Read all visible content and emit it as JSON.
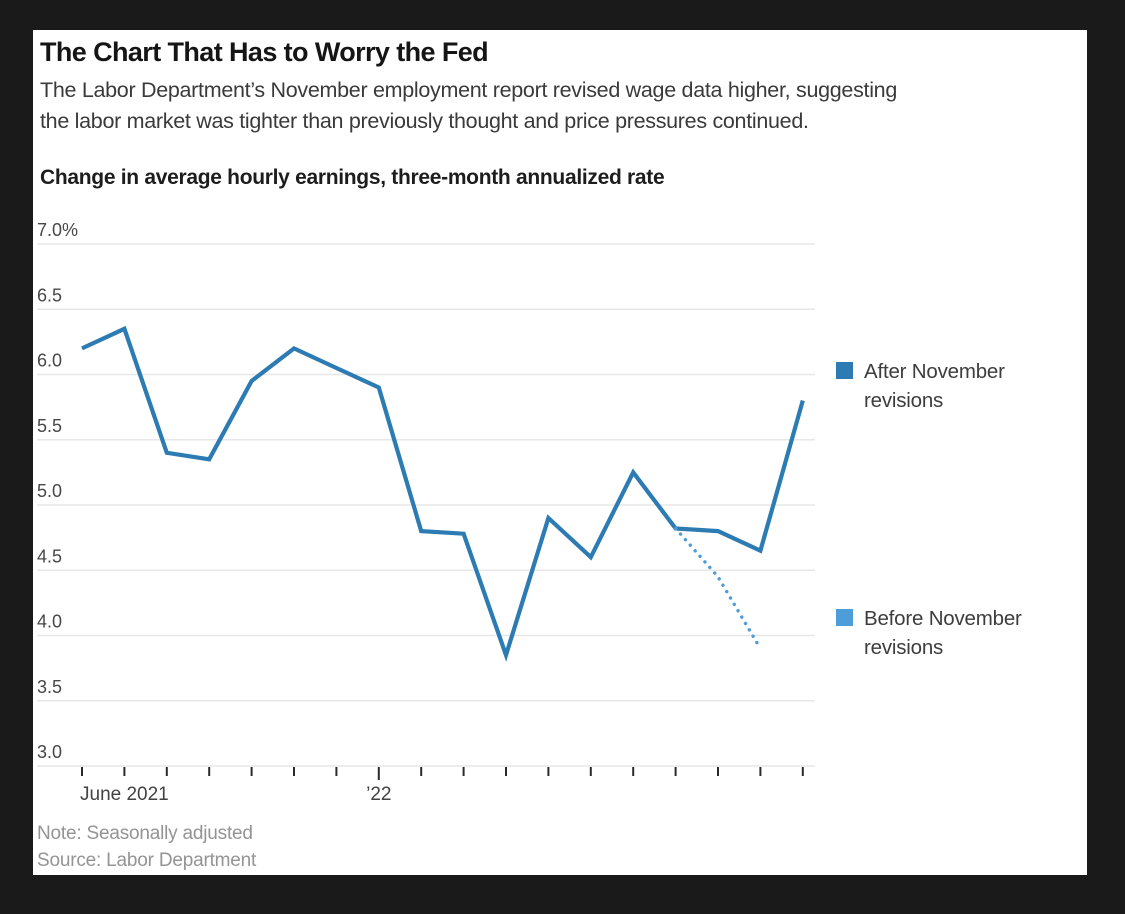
{
  "frame": {
    "background": "#1a1a1a",
    "panel_background": "#ffffff"
  },
  "header": {
    "title": "The Chart That Has to Worry the Fed",
    "subtitle_line1": "The Labor Department’s November employment report revised wage data higher, suggesting",
    "subtitle_line2": "the labor market was tighter than previously thought and price pressures continued."
  },
  "chart_label": "Change in average hourly earnings, three-month annualized rate",
  "legend": {
    "items": [
      {
        "label": "After November revisions",
        "color": "#2c7bb2"
      },
      {
        "label": "Before November revisions",
        "color": "#4d9dd9"
      }
    ]
  },
  "notes": {
    "note": "Note: Seasonally adjusted",
    "source": "Source: Labor Department"
  },
  "chart_data": {
    "type": "line",
    "title": "Change in average hourly earnings, three-month annualized rate",
    "unit": "%",
    "x": [
      "Jun 2021",
      "Jul 2021",
      "Aug 2021",
      "Sep 2021",
      "Oct 2021",
      "Nov 2021",
      "Dec 2021",
      "Jan 2022",
      "Feb 2022",
      "Mar 2022",
      "Apr 2022",
      "May 2022",
      "Jun 2022",
      "Jul 2022",
      "Aug 2022",
      "Sep 2022",
      "Oct 2022",
      "Nov 2022"
    ],
    "series": [
      {
        "name": "After November revisions",
        "style": "solid",
        "color": "#2c7bb2",
        "values": [
          6.2,
          6.35,
          5.4,
          5.35,
          5.95,
          6.2,
          6.05,
          5.9,
          4.8,
          4.78,
          3.85,
          4.9,
          4.6,
          5.25,
          4.82,
          4.8,
          4.65,
          5.8
        ]
      },
      {
        "name": "Before November revisions",
        "style": "dotted",
        "color": "#4d9dd9",
        "values": [
          null,
          null,
          null,
          null,
          null,
          null,
          null,
          null,
          null,
          null,
          null,
          null,
          null,
          null,
          4.82,
          4.45,
          3.9,
          null
        ]
      }
    ],
    "ylim": [
      3.0,
      7.0
    ],
    "yticks": [
      7.0,
      6.5,
      6.0,
      5.5,
      5.0,
      4.5,
      4.0,
      3.5,
      3.0
    ],
    "ytick_labels": [
      "7.0%",
      "6.5",
      "6.0",
      "5.5",
      "5.0",
      "4.5",
      "4.0",
      "3.5",
      "3.0"
    ],
    "xtick_labels": [
      {
        "index": 0,
        "text": "June 2021",
        "anchor": "start"
      },
      {
        "index": 7,
        "text": "’22",
        "anchor": "middle"
      }
    ],
    "grid": "horizontal",
    "legend_position": "right"
  }
}
